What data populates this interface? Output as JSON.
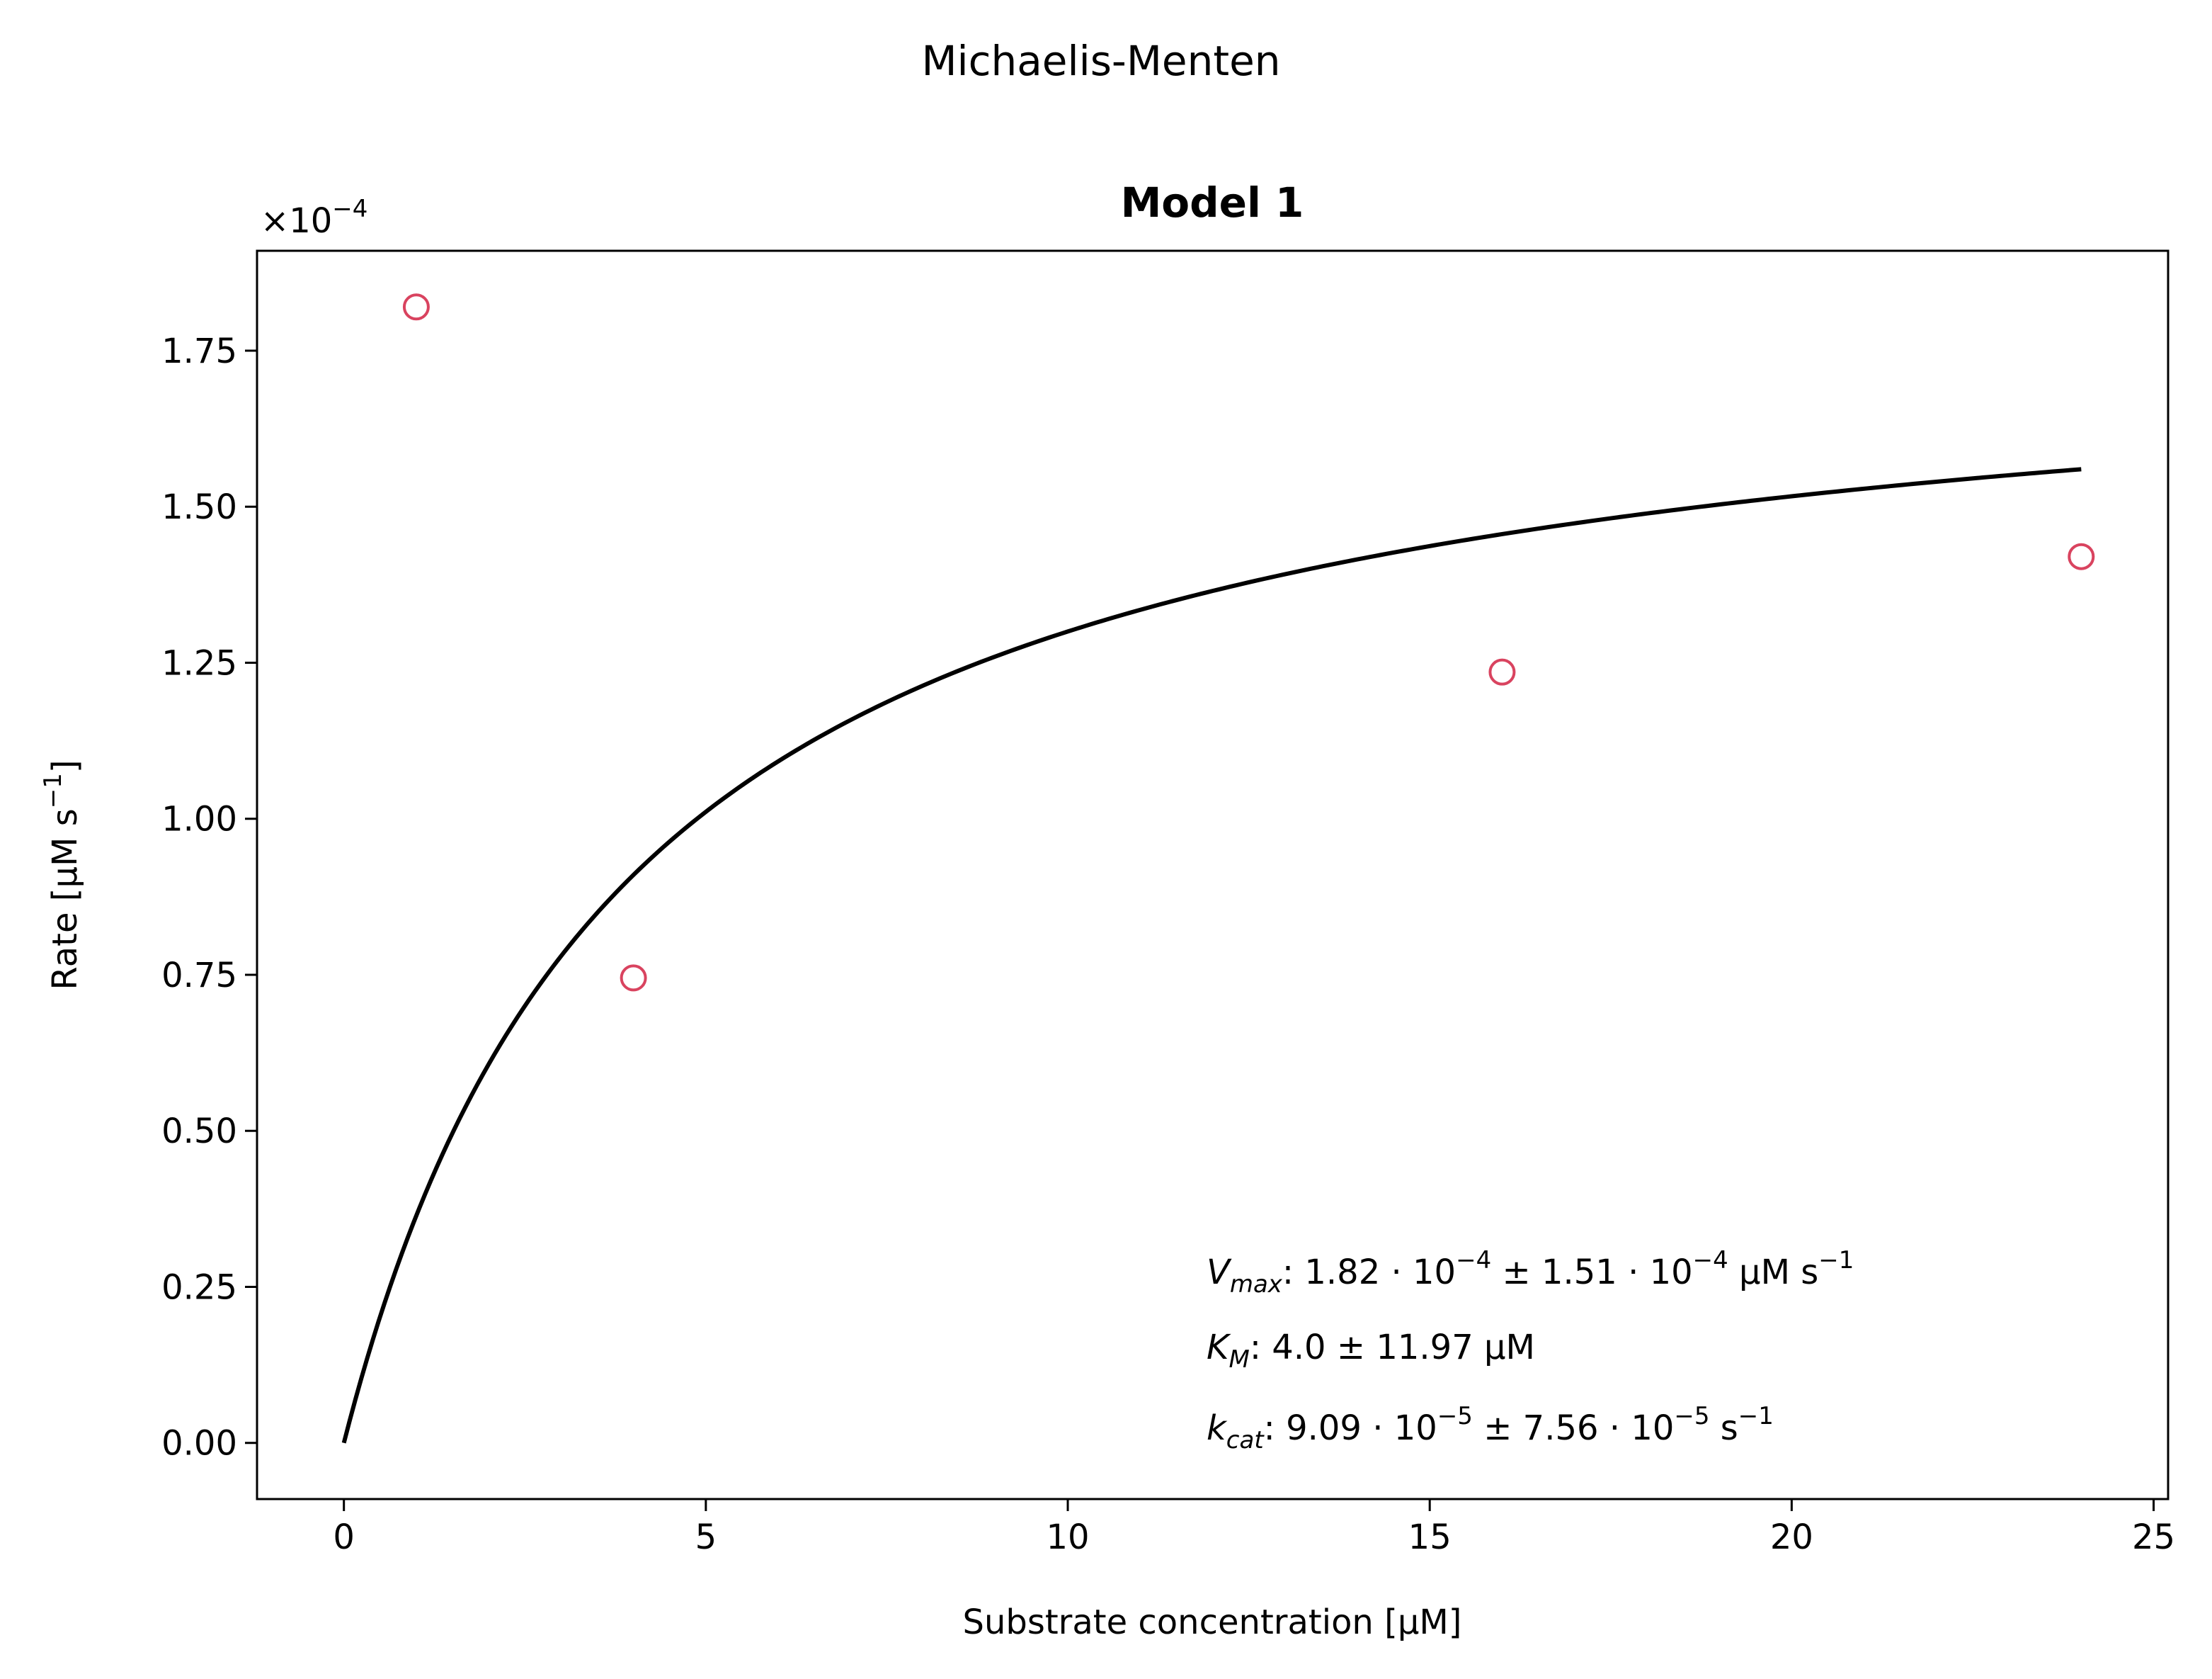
{
  "chart_data": {
    "type": "scatter",
    "suptitle": "Michaelis-Menten",
    "title": "Model 1",
    "xlabel": "Substrate concentration [µM]",
    "ylabel_main": "Rate [µM s",
    "ylabel_sup": "−1",
    "ylabel_end": "]",
    "y_offset_base": "×10",
    "y_offset_exp": "−4",
    "xlim": [
      -1.2,
      25.2
    ],
    "ylim": [
      -0.09,
      1.91
    ],
    "x_ticks": [
      {
        "value": 0,
        "label": "0"
      },
      {
        "value": 5,
        "label": "5"
      },
      {
        "value": 10,
        "label": "10"
      },
      {
        "value": 15,
        "label": "15"
      },
      {
        "value": 20,
        "label": "20"
      },
      {
        "value": 25,
        "label": "25"
      }
    ],
    "y_ticks": [
      {
        "value": 0,
        "label": "0.00"
      },
      {
        "value": 0.25,
        "label": "0.25"
      },
      {
        "value": 0.5,
        "label": "0.50"
      },
      {
        "value": 0.75,
        "label": "0.75"
      },
      {
        "value": 1.0,
        "label": "1.00"
      },
      {
        "value": 1.25,
        "label": "1.25"
      },
      {
        "value": 1.5,
        "label": "1.50"
      },
      {
        "value": 1.75,
        "label": "1.75"
      }
    ],
    "series": [
      {
        "kind": "scatter",
        "color": "#d9435f",
        "x": [
          1,
          4,
          16,
          24
        ],
        "y": [
          1.82,
          0.745,
          1.235,
          1.42
        ]
      },
      {
        "kind": "fit",
        "color": "#000000",
        "model": "michaelis-menten",
        "vmax": 1.82,
        "km": 4.0,
        "x_range": [
          0,
          24
        ]
      }
    ],
    "annotations": {
      "vmax": {
        "sym": "V",
        "sub": "max",
        "pre": ": 1.82 · 10",
        "e1": "−4",
        "mid": " ± 1.51 · 10",
        "e2": "−4",
        "post": " µM s",
        "e3": "−1"
      },
      "km": {
        "sym": "K",
        "sub": "M",
        "text": ": 4.0 ± 11.97 µM"
      },
      "kcat": {
        "sym": "k",
        "sub": "cat",
        "pre": ": 9.09 · 10",
        "e1": "−5",
        "mid": " ± 7.56 · 10",
        "e2": "−5",
        "post": " s",
        "e3": "−1"
      }
    }
  }
}
